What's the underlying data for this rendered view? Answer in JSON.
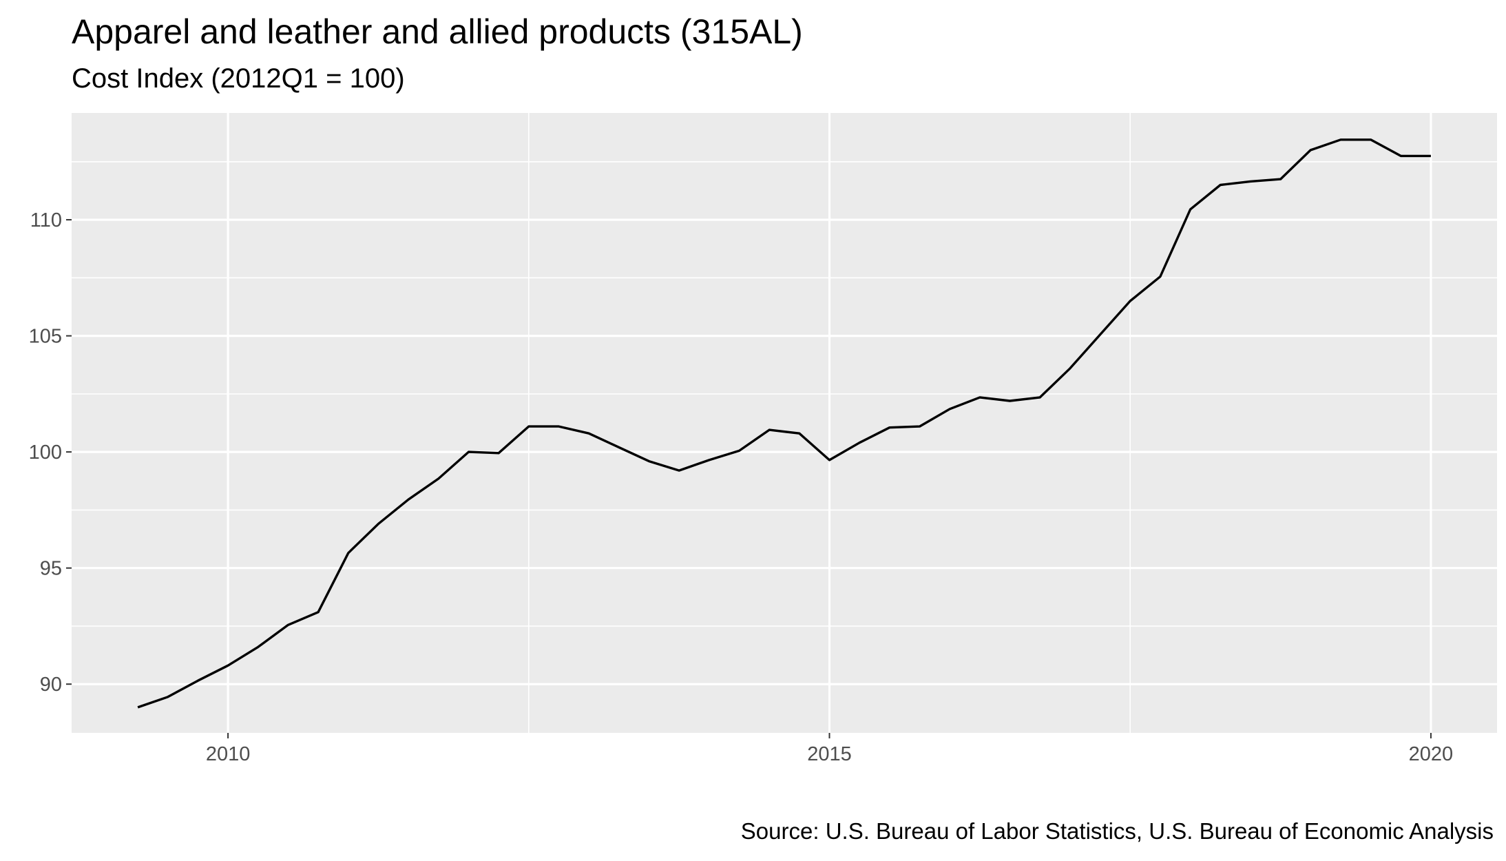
{
  "chart_data": {
    "type": "line",
    "title": "Apparel and leather and allied products (315AL)",
    "subtitle": "Cost Index (2012Q1 = 100)",
    "caption": "Source: U.S. Bureau of Labor Statistics, U.S. Bureau of Economic Analysis",
    "xlabel": "",
    "ylabel": "",
    "xlim": [
      2008.7,
      2020.55
    ],
    "ylim": [
      87.9,
      114.6
    ],
    "x_ticks": [
      {
        "value": 2010,
        "label": "2010"
      },
      {
        "value": 2015,
        "label": "2015"
      },
      {
        "value": 2020,
        "label": "2020"
      }
    ],
    "y_ticks": [
      {
        "value": 90,
        "label": "90"
      },
      {
        "value": 95,
        "label": "95"
      },
      {
        "value": 100,
        "label": "100"
      },
      {
        "value": 105,
        "label": "105"
      },
      {
        "value": 110,
        "label": "110"
      }
    ],
    "grid": true,
    "legend": "none",
    "line_color": "#000000",
    "panel_color": "#ebebeb",
    "series": [
      {
        "x": [
          2009.25,
          2009.5,
          2009.75,
          2010.0,
          2010.25,
          2010.5,
          2010.75,
          2011.0,
          2011.25,
          2011.5,
          2011.75,
          2012.0,
          2012.25,
          2012.5,
          2012.75,
          2013.0,
          2013.25,
          2013.5,
          2013.75,
          2014.0,
          2014.25,
          2014.5,
          2014.75,
          2015.0,
          2015.25,
          2015.5,
          2015.75,
          2016.0,
          2016.25,
          2016.5,
          2016.75,
          2017.0,
          2017.25,
          2017.5,
          2017.75,
          2018.0,
          2018.25,
          2018.5,
          2018.75,
          2019.0,
          2019.25,
          2019.5,
          2019.75,
          2020.0
        ],
        "y": [
          89.0,
          89.45,
          90.15,
          90.8,
          91.6,
          92.55,
          93.1,
          95.65,
          96.9,
          97.95,
          98.85,
          100.0,
          99.95,
          101.1,
          101.1,
          100.8,
          100.2,
          99.6,
          99.2,
          99.65,
          100.05,
          100.95,
          100.8,
          99.65,
          100.4,
          101.05,
          101.1,
          101.85,
          102.35,
          102.2,
          102.35,
          103.6,
          105.05,
          106.5,
          107.55,
          110.45,
          111.5,
          111.65,
          111.75,
          113.0,
          113.45,
          113.45,
          112.75,
          112.75
        ]
      }
    ]
  }
}
